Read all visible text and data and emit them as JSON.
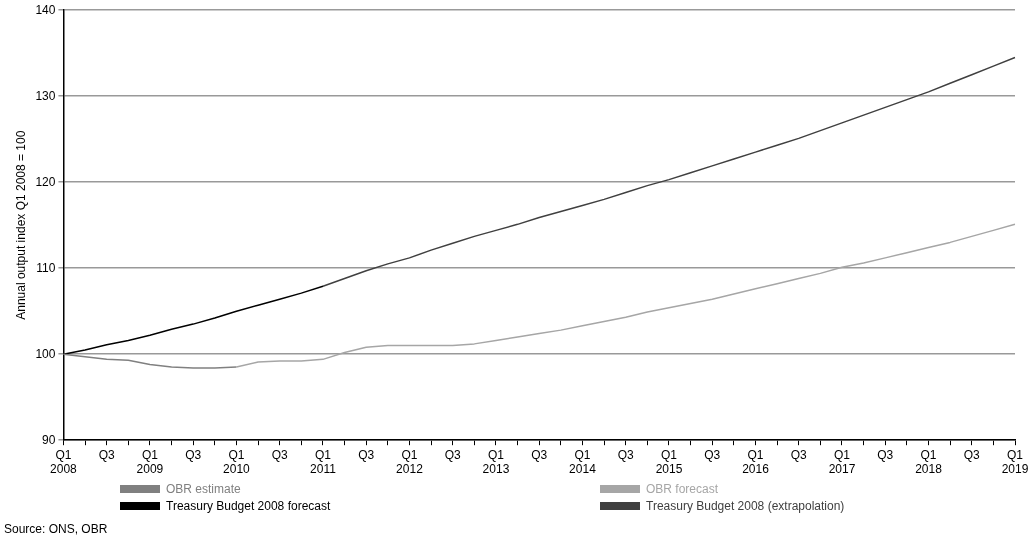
{
  "chart_data": {
    "type": "line",
    "ylabel": "Annual output index Q1 2008 = 100",
    "categories": [
      "Q1\n2008",
      null,
      "Q3",
      null,
      "Q1\n2009",
      null,
      "Q3",
      null,
      "Q1\n2010",
      null,
      "Q3",
      null,
      "Q1\n2011",
      null,
      "Q3",
      null,
      "Q1\n2012",
      null,
      "Q3",
      null,
      "Q1\n2013",
      null,
      "Q3",
      null,
      "Q1\n2014",
      null,
      "Q3",
      null,
      "Q1\n2015",
      null,
      "Q3",
      null,
      "Q1\n2016",
      null,
      "Q3",
      null,
      "Q1\n2017",
      null,
      "Q3",
      null,
      "Q1\n2018",
      null,
      "Q3",
      null,
      "Q1\n2019"
    ],
    "series": [
      {
        "name": "OBR estimate",
        "color": "#808080",
        "values": [
          100,
          99.7,
          99.4,
          99.3,
          98.8,
          98.5,
          98.4,
          98.4,
          98.5,
          null,
          null,
          null,
          null,
          null,
          null,
          null,
          null,
          null,
          null,
          null,
          null,
          null,
          null,
          null,
          null,
          null,
          null,
          null,
          null,
          null,
          null,
          null,
          null,
          null,
          null,
          null,
          null,
          null,
          null,
          null,
          null,
          null,
          null,
          null,
          null
        ]
      },
      {
        "name": "OBR forecast",
        "color": "#a6a6a6",
        "values": [
          null,
          null,
          null,
          null,
          null,
          null,
          null,
          null,
          98.5,
          99.1,
          99.2,
          99.2,
          99.4,
          100.2,
          100.8,
          101.0,
          101.0,
          101.0,
          101.0,
          101.2,
          101.6,
          102.0,
          102.4,
          102.8,
          103.3,
          103.8,
          104.3,
          104.9,
          105.4,
          105.9,
          106.4,
          107.0,
          107.6,
          108.2,
          108.8,
          109.4,
          110.1,
          110.6,
          111.2,
          111.8,
          112.4,
          113.0,
          113.7,
          114.4,
          115.1
        ]
      },
      {
        "name": "Treasury Budget 2008 forecast",
        "color": "#000000",
        "values": [
          100,
          100.5,
          101.1,
          101.6,
          102.2,
          102.9,
          103.5,
          104.2,
          105.0,
          105.7,
          106.4,
          107.1,
          107.9,
          null,
          null,
          null,
          null,
          null,
          null,
          null,
          null,
          null,
          null,
          null,
          null,
          null,
          null,
          null,
          null,
          null,
          null,
          null,
          null,
          null,
          null,
          null,
          null,
          null,
          null,
          null,
          null,
          null,
          null,
          null,
          null
        ]
      },
      {
        "name": "Treasury Budget 2008 (extrapolation)",
        "color": "#404040",
        "values": [
          null,
          null,
          null,
          null,
          null,
          null,
          null,
          null,
          null,
          null,
          null,
          null,
          107.9,
          108.8,
          109.7,
          110.5,
          111.2,
          112.1,
          112.9,
          113.7,
          114.4,
          115.1,
          115.9,
          116.6,
          117.3,
          118.0,
          118.8,
          119.6,
          120.3,
          121.1,
          121.9,
          122.7,
          123.5,
          124.3,
          125.1,
          126.0,
          126.9,
          127.8,
          128.7,
          129.6,
          130.5,
          131.5,
          132.5,
          133.5,
          134.5
        ]
      }
    ],
    "ylim": [
      90,
      140
    ],
    "yticks": [
      90,
      100,
      110,
      120,
      130,
      140
    ],
    "grid": "y",
    "legend": "bottom",
    "marker": "none",
    "line_style": "solid",
    "annotations": [
      "Source: ONS, OBR"
    ]
  }
}
